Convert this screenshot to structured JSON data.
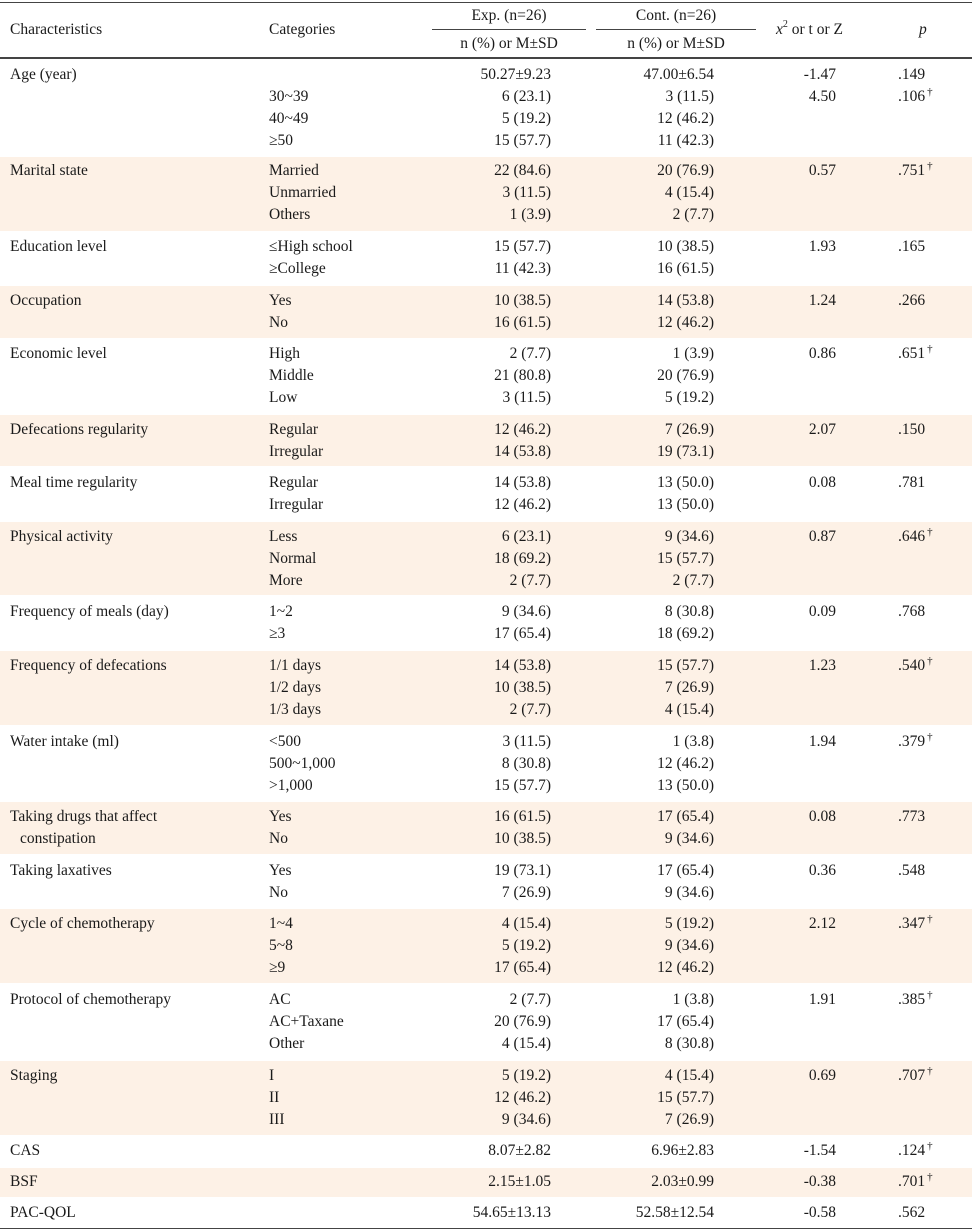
{
  "header": {
    "characteristics": "Characteristics",
    "categories": "Categories",
    "exp_group": "Exp. (n=26)",
    "cont_group": "Cont. (n=26)",
    "exp_sub": "n (%) or M±SD",
    "cont_sub": "n (%) or M±SD",
    "stat_x": "x",
    "stat_sup": "2",
    "stat_rest": " or t or Z",
    "p": "p"
  },
  "dagger_symbol": "†",
  "rows": [
    {
      "char": "Age (year)",
      "lines": [
        {
          "cat": "",
          "exp": "50.27±9.23",
          "cont": "47.00±6.54",
          "stat": "-1.47",
          "p": ".149",
          "dagger": false
        },
        {
          "cat": "30~39",
          "exp": "6 (23.1)",
          "cont": "3 (11.5)",
          "stat": "4.50",
          "p": ".106",
          "dagger": true
        },
        {
          "cat": "40~49",
          "exp": "5 (19.2)",
          "cont": "12 (46.2)",
          "stat": "",
          "p": "",
          "dagger": false
        },
        {
          "cat": "≥50",
          "exp": "15 (57.7)",
          "cont": "11 (42.3)",
          "stat": "",
          "p": "",
          "dagger": false
        }
      ]
    },
    {
      "char": "Marital state",
      "lines": [
        {
          "cat": "Married",
          "exp": "22 (84.6)",
          "cont": "20 (76.9)",
          "stat": "0.57",
          "p": ".751",
          "dagger": true
        },
        {
          "cat": "Unmarried",
          "exp": "3 (11.5)",
          "cont": "4 (15.4)",
          "stat": "",
          "p": "",
          "dagger": false
        },
        {
          "cat": "Others",
          "exp": "1 (3.9)",
          "cont": "2 (7.7)",
          "stat": "",
          "p": "",
          "dagger": false
        }
      ]
    },
    {
      "char": "Education level",
      "lines": [
        {
          "cat": "≤High school",
          "exp": "15 (57.7)",
          "cont": "10 (38.5)",
          "stat": "1.93",
          "p": ".165",
          "dagger": false
        },
        {
          "cat": "≥College",
          "exp": "11 (42.3)",
          "cont": "16 (61.5)",
          "stat": "",
          "p": "",
          "dagger": false
        }
      ]
    },
    {
      "char": "Occupation",
      "lines": [
        {
          "cat": "Yes",
          "exp": "10 (38.5)",
          "cont": "14 (53.8)",
          "stat": "1.24",
          "p": ".266",
          "dagger": false
        },
        {
          "cat": "No",
          "exp": "16 (61.5)",
          "cont": "12 (46.2)",
          "stat": "",
          "p": "",
          "dagger": false
        }
      ]
    },
    {
      "char": "Economic level",
      "lines": [
        {
          "cat": "High",
          "exp": "2 (7.7)",
          "cont": "1 (3.9)",
          "stat": "0.86",
          "p": ".651",
          "dagger": true
        },
        {
          "cat": "Middle",
          "exp": "21 (80.8)",
          "cont": "20 (76.9)",
          "stat": "",
          "p": "",
          "dagger": false
        },
        {
          "cat": "Low",
          "exp": "3 (11.5)",
          "cont": "5 (19.2)",
          "stat": "",
          "p": "",
          "dagger": false
        }
      ]
    },
    {
      "char": "Defecations regularity",
      "lines": [
        {
          "cat": "Regular",
          "exp": "12 (46.2)",
          "cont": "7 (26.9)",
          "stat": "2.07",
          "p": ".150",
          "dagger": false
        },
        {
          "cat": "Irregular",
          "exp": "14 (53.8)",
          "cont": "19 (73.1)",
          "stat": "",
          "p": "",
          "dagger": false
        }
      ]
    },
    {
      "char": "Meal time regularity",
      "lines": [
        {
          "cat": "Regular",
          "exp": "14 (53.8)",
          "cont": "13 (50.0)",
          "stat": "0.08",
          "p": ".781",
          "dagger": false
        },
        {
          "cat": "Irregular",
          "exp": "12 (46.2)",
          "cont": "13 (50.0)",
          "stat": "",
          "p": "",
          "dagger": false
        }
      ]
    },
    {
      "char": "Physical activity",
      "lines": [
        {
          "cat": "Less",
          "exp": "6 (23.1)",
          "cont": "9 (34.6)",
          "stat": "0.87",
          "p": ".646",
          "dagger": true
        },
        {
          "cat": "Normal",
          "exp": "18 (69.2)",
          "cont": "15 (57.7)",
          "stat": "",
          "p": "",
          "dagger": false
        },
        {
          "cat": "More",
          "exp": "2 (7.7)",
          "cont": "2 (7.7)",
          "stat": "",
          "p": "",
          "dagger": false
        }
      ]
    },
    {
      "char": "Frequency of meals (day)",
      "lines": [
        {
          "cat": "1~2",
          "exp": "9 (34.6)",
          "cont": "8 (30.8)",
          "stat": "0.09",
          "p": ".768",
          "dagger": false
        },
        {
          "cat": "≥3",
          "exp": "17 (65.4)",
          "cont": "18 (69.2)",
          "stat": "",
          "p": "",
          "dagger": false
        }
      ]
    },
    {
      "char": "Frequency of defecations",
      "lines": [
        {
          "cat": "1/1 days",
          "exp": "14 (53.8)",
          "cont": "15 (57.7)",
          "stat": "1.23",
          "p": ".540",
          "dagger": true
        },
        {
          "cat": "1/2 days",
          "exp": "10 (38.5)",
          "cont": "7 (26.9)",
          "stat": "",
          "p": "",
          "dagger": false
        },
        {
          "cat": "1/3 days",
          "exp": "2 (7.7)",
          "cont": "4 (15.4)",
          "stat": "",
          "p": "",
          "dagger": false
        }
      ]
    },
    {
      "char": "Water intake (ml)",
      "lines": [
        {
          "cat": "<500",
          "exp": "3 (11.5)",
          "cont": "1 (3.8)",
          "stat": "1.94",
          "p": ".379",
          "dagger": true
        },
        {
          "cat": "500~1,000",
          "exp": "8 (30.8)",
          "cont": "12 (46.2)",
          "stat": "",
          "p": "",
          "dagger": false
        },
        {
          "cat": ">1,000",
          "exp": "15 (57.7)",
          "cont": "13 (50.0)",
          "stat": "",
          "p": "",
          "dagger": false
        }
      ]
    },
    {
      "char": "Taking drugs that affect",
      "char2": "constipation",
      "lines": [
        {
          "cat": "Yes",
          "exp": "16 (61.5)",
          "cont": "17 (65.4)",
          "stat": "0.08",
          "p": ".773",
          "dagger": false
        },
        {
          "cat": "No",
          "exp": "10 (38.5)",
          "cont": "9 (34.6)",
          "stat": "",
          "p": "",
          "dagger": false
        }
      ]
    },
    {
      "char": "Taking laxatives",
      "lines": [
        {
          "cat": "Yes",
          "exp": "19 (73.1)",
          "cont": "17 (65.4)",
          "stat": "0.36",
          "p": ".548",
          "dagger": false
        },
        {
          "cat": "No",
          "exp": "7 (26.9)",
          "cont": "9 (34.6)",
          "stat": "",
          "p": "",
          "dagger": false
        }
      ]
    },
    {
      "char": "Cycle of chemotherapy",
      "lines": [
        {
          "cat": "1~4",
          "exp": "4 (15.4)",
          "cont": "5 (19.2)",
          "stat": "2.12",
          "p": ".347",
          "dagger": true
        },
        {
          "cat": "5~8",
          "exp": "5 (19.2)",
          "cont": "9 (34.6)",
          "stat": "",
          "p": "",
          "dagger": false
        },
        {
          "cat": "≥9",
          "exp": "17 (65.4)",
          "cont": "12 (46.2)",
          "stat": "",
          "p": "",
          "dagger": false
        }
      ]
    },
    {
      "char": "Protocol of chemotherapy",
      "lines": [
        {
          "cat": "AC",
          "exp": "2 (7.7)",
          "cont": "1 (3.8)",
          "stat": "1.91",
          "p": ".385",
          "dagger": true
        },
        {
          "cat": "AC+Taxane",
          "exp": "20 (76.9)",
          "cont": "17 (65.4)",
          "stat": "",
          "p": "",
          "dagger": false
        },
        {
          "cat": "Other",
          "exp": "4 (15.4)",
          "cont": "8 (30.8)",
          "stat": "",
          "p": "",
          "dagger": false
        }
      ]
    },
    {
      "char": "Staging",
      "lines": [
        {
          "cat": "I",
          "exp": "5 (19.2)",
          "cont": "4 (15.4)",
          "stat": "0.69",
          "p": ".707",
          "dagger": true
        },
        {
          "cat": "II",
          "exp": "12 (46.2)",
          "cont": "15 (57.7)",
          "stat": "",
          "p": "",
          "dagger": false
        },
        {
          "cat": "III",
          "exp": "9 (34.6)",
          "cont": "7 (26.9)",
          "stat": "",
          "p": "",
          "dagger": false
        }
      ]
    },
    {
      "char": "CAS",
      "lines": [
        {
          "cat": "",
          "exp": "8.07±2.82",
          "cont": "6.96±2.83",
          "stat": "-1.54",
          "p": ".124",
          "dagger": true
        }
      ]
    },
    {
      "char": "BSF",
      "lines": [
        {
          "cat": "",
          "exp": "2.15±1.05",
          "cont": "2.03±0.99",
          "stat": "-0.38",
          "p": ".701",
          "dagger": true
        }
      ]
    },
    {
      "char": "PAC-QOL",
      "lines": [
        {
          "cat": "",
          "exp": "54.65±13.13",
          "cont": "52.58±12.54",
          "stat": "-0.58",
          "p": ".562",
          "dagger": false
        }
      ]
    }
  ]
}
